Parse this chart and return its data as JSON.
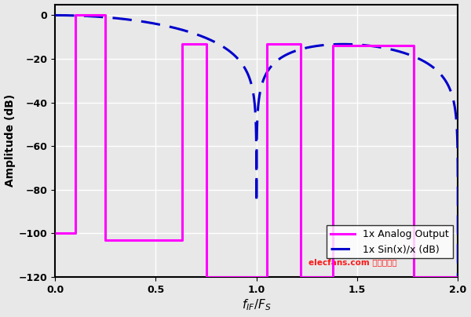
{
  "title": "",
  "xlabel": "f_{IF}/F_S",
  "ylabel": "Amplitude (dB)",
  "xlim": [
    0,
    2
  ],
  "ylim": [
    -120,
    5
  ],
  "yticks": [
    0,
    -20,
    -40,
    -60,
    -80,
    -100,
    -120
  ],
  "xticks": [
    0,
    0.5,
    1.0,
    1.5,
    2.0
  ],
  "background_color": "#e8e8e8",
  "plot_bg_color": "#e8e8e8",
  "analog_color": "#ff00ff",
  "sinc_color": "#0000cc",
  "legend_labels": [
    "1x Analog Output",
    "1x Sin(x)/x (dB)"
  ],
  "watermark": "elecfans.com 电子发烧友",
  "watermark_color": "#ff0000",
  "analog_breakpoints": [
    [
      0.0,
      0.1,
      -100
    ],
    [
      0.1,
      0.25,
      0
    ],
    [
      0.25,
      0.63,
      -103
    ],
    [
      0.63,
      0.75,
      -13
    ],
    [
      0.75,
      1.05,
      -120
    ],
    [
      1.05,
      1.22,
      -13
    ],
    [
      1.22,
      1.38,
      -120
    ],
    [
      1.38,
      1.78,
      -14
    ],
    [
      1.78,
      2.0,
      -120
    ]
  ]
}
